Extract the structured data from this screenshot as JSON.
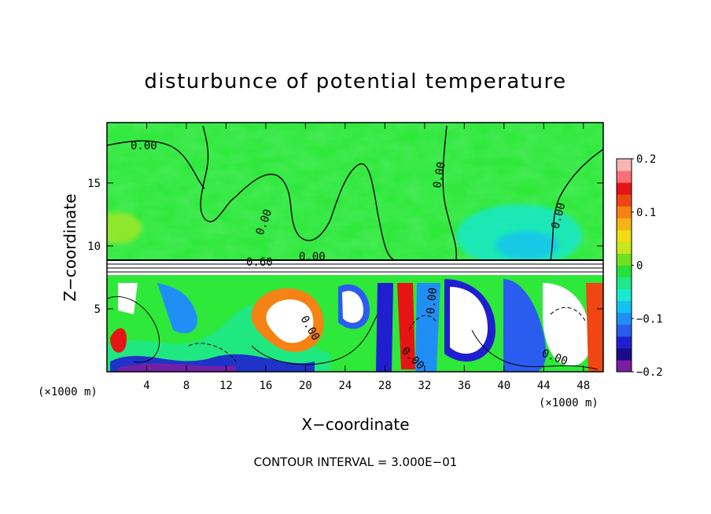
{
  "chart_data": {
    "type": "heatmap",
    "title": "disturbunce of potential temperature",
    "xlabel": "X−coordinate",
    "ylabel": "Z−coordinate",
    "x_unit_left": "(×1000 m)",
    "x_unit_right": "(×1000 m)",
    "xlim": [
      0,
      50
    ],
    "ylim": [
      0,
      19.8
    ],
    "x_ticks": [
      4,
      8,
      12,
      16,
      20,
      24,
      28,
      32,
      36,
      40,
      44,
      48
    ],
    "y_ticks": [
      5,
      10,
      15
    ],
    "colorbar": {
      "range": [
        -0.2,
        0.2
      ],
      "tick_values": [
        0.2,
        0.1,
        0,
        -0.1,
        -0.2
      ],
      "tick_labels": [
        "0.2",
        "0.1",
        "0",
        "−0.1",
        "−0.2"
      ],
      "colors": [
        "#7b1fa2",
        "#1a0a8c",
        "#1f1fd0",
        "#2a5cf0",
        "#1f8ff5",
        "#12c2f0",
        "#19e8d2",
        "#1ee88a",
        "#28e03c",
        "#6fe01e",
        "#c8e61e",
        "#f0dc14",
        "#f5b414",
        "#f58214",
        "#f04614",
        "#e61414",
        "#fa6e78",
        "#fab4b4"
      ]
    },
    "regions": [
      {
        "x": [
          0,
          50
        ],
        "z": [
          9,
          19.8
        ],
        "value": 0.0,
        "note": "upper layer near zero (green)"
      },
      {
        "x": [
          38,
          47
        ],
        "z": [
          9,
          14
        ],
        "value": -0.06,
        "note": "cyan patch"
      },
      {
        "x": [
          0,
          50
        ],
        "z": [
          8,
          9
        ],
        "value": 0.6,
        "note": "strong positive layer, white (off scale)"
      },
      {
        "x": [
          0,
          50
        ],
        "z": [
          0,
          8
        ],
        "value": "mixed",
        "note": "turbulent eddies, values −0.2 to 0.2 and beyond"
      }
    ],
    "contour_labels": [
      "0.00",
      "0.00",
      "0.00",
      "0.00",
      "0.00",
      "0.60",
      "0.00",
      "0.00",
      "0.00",
      "0.00"
    ],
    "note": "CONTOUR INTERVAL = 3.000E−01"
  }
}
